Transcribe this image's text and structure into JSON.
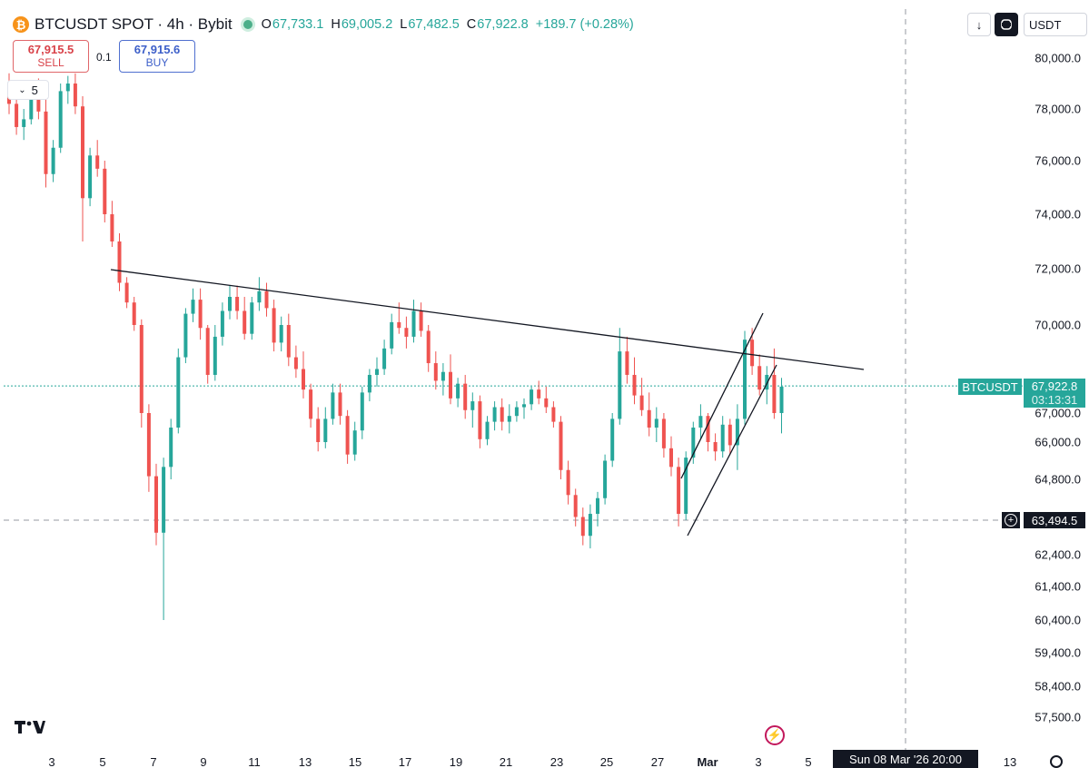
{
  "header": {
    "symbol_initial": "₿",
    "title": "BTCUSDT SPOT · 4h · Bybit",
    "ohlc": {
      "o_label": "O",
      "o_value": "67,733.1",
      "h_label": "H",
      "h_value": "69,005.2",
      "l_label": "L",
      "l_value": "67,482.5",
      "c_label": "C",
      "c_value": "67,922.8",
      "change": "+189.7 (+0.28%)"
    }
  },
  "trade": {
    "sell_price": "67,915.5",
    "sell_label": "SELL",
    "quantity": "0.1",
    "buy_price": "67,915.6",
    "buy_label": "BUY"
  },
  "toolbar": {
    "download_glyph": "↓",
    "currency": "USDT"
  },
  "interval_box": {
    "label": "5"
  },
  "price_axis": {
    "ticks": [
      {
        "label": "80,000.0",
        "value": 80000
      },
      {
        "label": "78,000.0",
        "value": 78000
      },
      {
        "label": "76,000.0",
        "value": 76000
      },
      {
        "label": "74,000.0",
        "value": 74000
      },
      {
        "label": "72,000.0",
        "value": 72000
      },
      {
        "label": "70,000.0",
        "value": 70000
      },
      {
        "label": "67,000.0",
        "value": 67000
      },
      {
        "label": "66,000.0",
        "value": 66000
      },
      {
        "label": "64,800.0",
        "value": 64800
      },
      {
        "label": "62,400.0",
        "value": 62400
      },
      {
        "label": "61,400.0",
        "value": 61400
      },
      {
        "label": "60,400.0",
        "value": 60400
      },
      {
        "label": "59,400.0",
        "value": 59400
      },
      {
        "label": "58,400.0",
        "value": 58400
      },
      {
        "label": "57,500.0",
        "value": 57500
      }
    ],
    "last_price_symbol": "BTCUSDT",
    "last_price": "67,922.8",
    "countdown": "03:13:31",
    "crosshair_price": "63,494.5"
  },
  "time_axis": {
    "labels": [
      "3",
      "5",
      "7",
      "9",
      "11",
      "13",
      "15",
      "17",
      "19",
      "21",
      "23",
      "25",
      "27",
      "Mar",
      "3",
      "5",
      "13"
    ],
    "crosshair_time": "Sun 08 Mar '26   20:00"
  },
  "colors": {
    "up": "#26a69a",
    "down": "#ef5350",
    "last_price": "#26a69a",
    "sell": "#d9434a",
    "buy": "#3d5fc9"
  },
  "icons": {
    "logo": "tradingview-logo-icon",
    "flash": "lightning-icon",
    "settings": "gear-icon",
    "fullscreen": "fullscreen-icon",
    "crosshair_add": "plus-circle-icon"
  },
  "chart_data": {
    "type": "candlestick",
    "timeframe": "4h",
    "candles": [
      [
        79000,
        79400,
        77800,
        78200
      ],
      [
        78200,
        78600,
        77000,
        77300
      ],
      [
        77300,
        78000,
        76800,
        77600
      ],
      [
        77600,
        79100,
        77400,
        78800
      ],
      [
        78800,
        79200,
        77600,
        77900
      ],
      [
        77900,
        78400,
        75000,
        75500
      ],
      [
        75500,
        76800,
        75200,
        76500
      ],
      [
        76500,
        79000,
        76300,
        78700
      ],
      [
        78700,
        79300,
        78200,
        79000
      ],
      [
        79000,
        79400,
        77800,
        78100
      ],
      [
        78100,
        78500,
        73000,
        74600
      ],
      [
        74600,
        76500,
        74300,
        76200
      ],
      [
        76200,
        76800,
        75400,
        75700
      ],
      [
        75700,
        76000,
        73700,
        74000
      ],
      [
        74000,
        74500,
        72800,
        73000
      ],
      [
        73000,
        73300,
        71200,
        71500
      ],
      [
        71500,
        71700,
        70600,
        70800
      ],
      [
        70800,
        71000,
        69800,
        70000
      ],
      [
        70000,
        70200,
        66500,
        67000
      ],
      [
        67000,
        67300,
        64400,
        64900
      ],
      [
        64900,
        65300,
        62700,
        63100
      ],
      [
        63100,
        65500,
        60400,
        65200
      ],
      [
        65200,
        66800,
        64800,
        66500
      ],
      [
        66500,
        69200,
        66300,
        68900
      ],
      [
        68900,
        70600,
        68700,
        70400
      ],
      [
        70400,
        71300,
        70100,
        70900
      ],
      [
        70900,
        71300,
        69500,
        69900
      ],
      [
        69900,
        70000,
        68000,
        68300
      ],
      [
        68300,
        70000,
        68100,
        69600
      ],
      [
        69600,
        70800,
        69300,
        70500
      ],
      [
        70500,
        71400,
        70200,
        71000
      ],
      [
        71000,
        71400,
        70200,
        70500
      ],
      [
        70500,
        71000,
        69500,
        69700
      ],
      [
        69700,
        71000,
        69500,
        70800
      ],
      [
        70800,
        71700,
        70500,
        71200
      ],
      [
        71200,
        71500,
        70300,
        70600
      ],
      [
        70600,
        70900,
        69100,
        69400
      ],
      [
        69400,
        70300,
        69100,
        70000
      ],
      [
        70000,
        70400,
        68600,
        68900
      ],
      [
        68900,
        69300,
        68200,
        68500
      ],
      [
        68500,
        69100,
        67500,
        67800
      ],
      [
        67800,
        68000,
        66500,
        66800
      ],
      [
        66800,
        67200,
        65700,
        66000
      ],
      [
        66000,
        67200,
        65800,
        66800
      ],
      [
        66800,
        68000,
        66600,
        67700
      ],
      [
        67700,
        68000,
        66600,
        66900
      ],
      [
        66900,
        67100,
        65300,
        65600
      ],
      [
        65600,
        66700,
        65400,
        66400
      ],
      [
        66400,
        67900,
        66100,
        67700
      ],
      [
        67700,
        68500,
        67400,
        68300
      ],
      [
        68300,
        68900,
        67900,
        68500
      ],
      [
        68500,
        69500,
        68300,
        69200
      ],
      [
        69200,
        70400,
        69000,
        70100
      ],
      [
        70100,
        70800,
        69700,
        69900
      ],
      [
        69900,
        70300,
        69200,
        69600
      ],
      [
        69600,
        70900,
        69400,
        70500
      ],
      [
        70500,
        70800,
        69600,
        69800
      ],
      [
        69800,
        70000,
        68400,
        68700
      ],
      [
        68700,
        69100,
        67800,
        68100
      ],
      [
        68100,
        68700,
        67600,
        68400
      ],
      [
        68400,
        69000,
        67300,
        67500
      ],
      [
        67500,
        68200,
        67200,
        68000
      ],
      [
        68000,
        68300,
        66800,
        67100
      ],
      [
        67100,
        67700,
        66500,
        67400
      ],
      [
        67400,
        67600,
        65800,
        66100
      ],
      [
        66100,
        66900,
        65900,
        66700
      ],
      [
        66700,
        67400,
        66400,
        67200
      ],
      [
        67200,
        67500,
        66400,
        66700
      ],
      [
        66700,
        67300,
        66300,
        66900
      ],
      [
        66900,
        67400,
        66700,
        67200
      ],
      [
        67200,
        67500,
        66800,
        67300
      ],
      [
        67300,
        67900,
        67100,
        67800
      ],
      [
        67800,
        68100,
        67300,
        67500
      ],
      [
        67500,
        67900,
        67000,
        67200
      ],
      [
        67200,
        67400,
        66500,
        66700
      ],
      [
        66700,
        66900,
        64800,
        65100
      ],
      [
        65100,
        65400,
        64000,
        64300
      ],
      [
        64300,
        64500,
        63300,
        63600
      ],
      [
        63600,
        63900,
        62700,
        63000
      ],
      [
        63000,
        64000,
        62600,
        63700
      ],
      [
        63700,
        64400,
        63300,
        64200
      ],
      [
        64200,
        65600,
        64000,
        65400
      ],
      [
        65400,
        67000,
        65200,
        66800
      ],
      [
        66800,
        69900,
        66600,
        69100
      ],
      [
        69100,
        69600,
        68000,
        68300
      ],
      [
        68300,
        68900,
        67300,
        67600
      ],
      [
        67600,
        68200,
        66900,
        67100
      ],
      [
        67100,
        67700,
        66200,
        66500
      ],
      [
        66500,
        67200,
        66000,
        66800
      ],
      [
        66800,
        67000,
        65500,
        65800
      ],
      [
        65800,
        66200,
        64900,
        65200
      ],
      [
        65200,
        65500,
        63300,
        63700
      ],
      [
        63700,
        65700,
        63500,
        65500
      ],
      [
        65500,
        66700,
        65300,
        66500
      ],
      [
        66500,
        67300,
        66100,
        66900
      ],
      [
        66900,
        67000,
        65700,
        66000
      ],
      [
        66000,
        66300,
        65400,
        65700
      ],
      [
        65700,
        66900,
        65500,
        66600
      ],
      [
        66600,
        66800,
        65600,
        65900
      ],
      [
        65900,
        67300,
        65100,
        66800
      ],
      [
        66800,
        69800,
        66600,
        69500
      ],
      [
        69500,
        69900,
        68300,
        68600
      ],
      [
        68600,
        69000,
        67600,
        67800
      ],
      [
        67800,
        68600,
        67300,
        68300
      ],
      [
        68300,
        69200,
        66800,
        67000
      ],
      [
        67000,
        68200,
        66300,
        67900
      ]
    ],
    "last_close": 67922.8,
    "crosshair_price": 63494.5
  }
}
